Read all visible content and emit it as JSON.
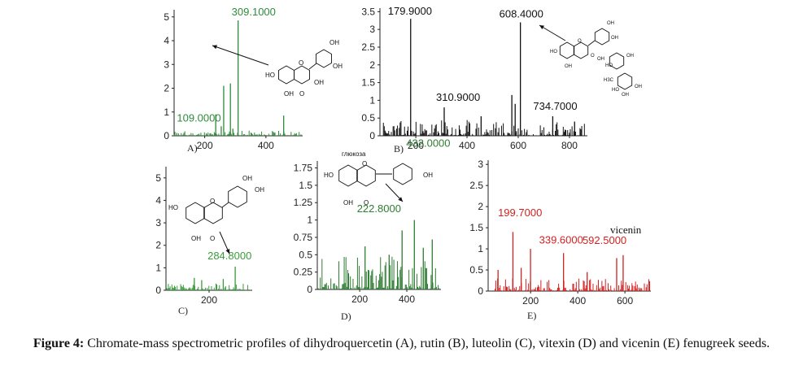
{
  "chart_data": [
    {
      "id": "A",
      "type": "bar",
      "panel_label": "A)",
      "color": "#2e8b3a",
      "xlim": [
        100,
        520
      ],
      "ylim": [
        0,
        5.3
      ],
      "xticks": [
        200,
        400
      ],
      "yticks": [
        0,
        1,
        2,
        3,
        4,
        5
      ],
      "ytick_labels": [
        "0",
        "1",
        "2",
        "3",
        "4",
        "5"
      ],
      "peaks": [
        {
          "x": 109.0,
          "y": 0.12,
          "label": "109.0000"
        },
        {
          "x": 236,
          "y": 0.9
        },
        {
          "x": 254,
          "y": 0.4
        },
        {
          "x": 262,
          "y": 2.1
        },
        {
          "x": 284,
          "y": 2.2
        },
        {
          "x": 292,
          "y": 0.3
        },
        {
          "x": 309.1,
          "y": 4.85,
          "label": "309.1000"
        },
        {
          "x": 458,
          "y": 0.85
        }
      ],
      "noise": {
        "from": 100,
        "to": 515,
        "max": 0.22,
        "seed": 11
      },
      "label_color": "#2e8b3a",
      "molecule": "dihydroquercetin",
      "molecule_atoms": [
        "OH",
        "OH",
        "HO",
        "OH",
        "OH",
        "O",
        "O"
      ]
    },
    {
      "id": "B",
      "type": "bar",
      "panel_label": "B)",
      "color": "#111111",
      "xlim": [
        60,
        870
      ],
      "ylim": [
        0,
        3.6
      ],
      "xticks": [
        200,
        400,
        600,
        800
      ],
      "yticks": [
        0,
        0.5,
        1,
        1.5,
        2,
        2.5,
        3,
        3.5
      ],
      "ytick_labels": [
        "0",
        "0.5",
        "1",
        "1.5",
        "2",
        "2.5",
        "3",
        "3.5"
      ],
      "peaks": [
        {
          "x": 179.9,
          "y": 3.3,
          "label": "179.9000"
        },
        {
          "x": 310.9,
          "y": 0.8,
          "label": "310.9000"
        },
        {
          "x": 575,
          "y": 1.15
        },
        {
          "x": 588,
          "y": 0.9
        },
        {
          "x": 608.4,
          "y": 3.2,
          "label": "608.4000"
        },
        {
          "x": 734.7,
          "y": 0.55,
          "label": "734.7000"
        },
        {
          "x": 455,
          "y": 0.55
        },
        {
          "x": 820,
          "y": 0.4
        }
      ],
      "noise": {
        "from": 70,
        "to": 860,
        "max": 0.45,
        "seed": 23
      },
      "label_color": "#111111",
      "molecule": "rutin",
      "molecule_atoms": [
        "OH",
        "OH",
        "HO",
        "OH",
        "O",
        "O",
        "OH",
        "HO",
        "OH",
        "H3C",
        "HO",
        "OH",
        "OH"
      ]
    },
    {
      "id": "C",
      "type": "bar",
      "panel_label": "C)",
      "color": "#3a9b3a",
      "xlim": [
        60,
        340
      ],
      "ylim": [
        0,
        5.5
      ],
      "xticks": [
        200
      ],
      "yticks": [
        0,
        1,
        2,
        3,
        4,
        5
      ],
      "ytick_labels": [
        "0",
        "1",
        "2",
        "3",
        "4",
        "5"
      ],
      "peaks": [
        {
          "x": 284.8,
          "y": 1.05,
          "label": "284.8000"
        },
        {
          "x": 152,
          "y": 0.55
        },
        {
          "x": 176,
          "y": 0.45
        },
        {
          "x": 246,
          "y": 0.5
        }
      ],
      "noise": {
        "from": 62,
        "to": 335,
        "max": 0.3,
        "seed": 37
      },
      "label_color": "#3a9b3a",
      "molecule": "luteolin",
      "molecule_atoms": [
        "OH",
        "OH",
        "HO",
        "O",
        "OH",
        "O"
      ]
    },
    {
      "id": "D",
      "type": "bar",
      "panel_label": "D)",
      "color": "#2e7d32",
      "xlim": [
        20,
        545
      ],
      "ylim": [
        0,
        1.85
      ],
      "xticks": [
        200,
        400
      ],
      "yticks": [
        0,
        0.25,
        0.5,
        0.75,
        1,
        1.25,
        1.5,
        1.75
      ],
      "ytick_labels": [
        "0",
        "0.25",
        "0.5",
        "0.75",
        "1",
        "1.25",
        "1.5",
        "1.75"
      ],
      "peaks": [
        {
          "x": 222.8,
          "y": 0.62,
          "label": "222.8000"
        },
        {
          "x": 432.0,
          "y": 1.0,
          "label": "432.0000"
        },
        {
          "x": 380,
          "y": 0.85
        },
        {
          "x": 508,
          "y": 0.72
        },
        {
          "x": 470,
          "y": 0.6
        },
        {
          "x": 325,
          "y": 0.5
        }
      ],
      "noise": {
        "from": 25,
        "to": 540,
        "max": 0.48,
        "seed": 53
      },
      "label_color": "#2e7d32",
      "molecule": "vitexin",
      "molecule_atoms": [
        "глюкоза",
        "HO",
        "O",
        "OH",
        "OH",
        "O"
      ]
    },
    {
      "id": "E",
      "type": "bar",
      "panel_label": "E)",
      "color": "#d42020",
      "xlim": [
        20,
        710
      ],
      "ylim": [
        0,
        3.1
      ],
      "xticks": [
        200,
        400,
        600
      ],
      "yticks": [
        0,
        0.5,
        1,
        1.5,
        2,
        2.5,
        3
      ],
      "ytick_labels": [
        "0",
        "0.5",
        "1",
        "1.5",
        "2",
        "2.5",
        "3"
      ],
      "peaks": [
        {
          "x": 125,
          "y": 1.4
        },
        {
          "x": 199.7,
          "y": 1.0,
          "label": "199.7000"
        },
        {
          "x": 339.6,
          "y": 0.9,
          "label": "339.6000"
        },
        {
          "x": 592.5,
          "y": 0.85,
          "label": "592.5000"
        },
        {
          "x": 565,
          "y": 0.78
        },
        {
          "x": 62,
          "y": 0.5
        },
        {
          "x": 160,
          "y": 0.55
        },
        {
          "x": 440,
          "y": 0.45
        }
      ],
      "noise": {
        "from": 30,
        "to": 705,
        "max": 0.3,
        "seed": 71
      },
      "label_color": "#d42020",
      "extra_label": "vicenin"
    }
  ],
  "caption": {
    "bold": "Figure 4:",
    "text": "Chromate-mass spectrometric profiles of dihydroquercetin (A), rutin (B), luteolin (C), vitexin (D) and vicenin (E) fenugreek seeds."
  }
}
